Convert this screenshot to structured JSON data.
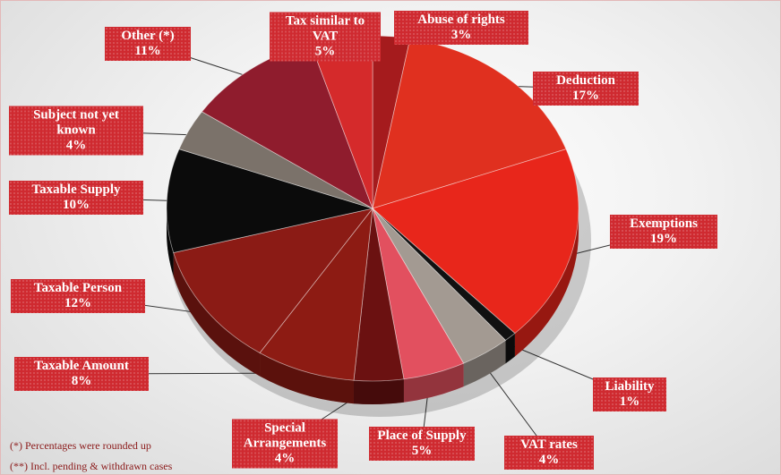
{
  "chart_data": {
    "type": "pie",
    "categories": [
      "Abuse of rights",
      "Deduction",
      "Exemptions",
      "Liability",
      "VAT rates",
      "Place of Supply",
      "Special Arrangements",
      "Taxable Amount",
      "Taxable Person",
      "Taxable Supply",
      "Subject not yet known",
      "Other (*)",
      "Tax similar to VAT"
    ],
    "values": [
      3,
      17,
      19,
      1,
      4,
      5,
      4,
      8,
      12,
      10,
      4,
      11,
      5
    ],
    "value_labels": [
      "3%",
      "17%",
      "19%",
      "1%",
      "4%",
      "5%",
      "4%",
      "8%",
      "12%",
      "10%",
      "4%",
      "11%",
      "5%"
    ],
    "colors": [
      "#a51b1d",
      "#e0301f",
      "#e8261b",
      "#111111",
      "#a39a92",
      "#e2505f",
      "#6b1111",
      "#8d1b13",
      "#8b1b15",
      "#0b0b0b",
      "#7b726a",
      "#8f1c2d",
      "#d52a2b"
    ],
    "notes": [
      "(*) Percentages were rounded up",
      "(**) Incl. pending & withdrawn cases"
    ]
  }
}
